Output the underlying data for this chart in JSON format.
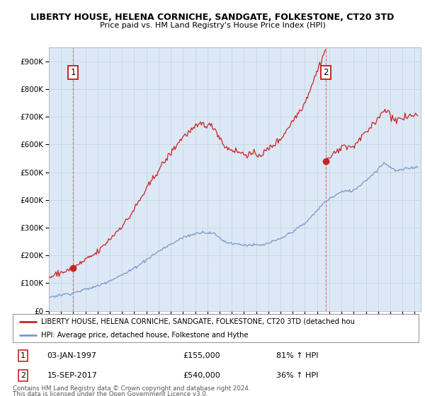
{
  "title1": "LIBERTY HOUSE, HELENA CORNICHE, SANDGATE, FOLKESTONE, CT20 3TD",
  "title2": "Price paid vs. HM Land Registry's House Price Index (HPI)",
  "ylim": [
    0,
    950000
  ],
  "yticks": [
    0,
    100000,
    200000,
    300000,
    400000,
    500000,
    600000,
    700000,
    800000,
    900000
  ],
  "ytick_labels": [
    "£0",
    "£100K",
    "£200K",
    "£300K",
    "£400K",
    "£500K",
    "£600K",
    "£700K",
    "£800K",
    "£900K"
  ],
  "xlim_start": 1995.0,
  "xlim_end": 2025.5,
  "xticks": [
    1995,
    1996,
    1997,
    1998,
    1999,
    2000,
    2001,
    2002,
    2003,
    2004,
    2005,
    2006,
    2007,
    2008,
    2009,
    2010,
    2011,
    2012,
    2013,
    2014,
    2015,
    2016,
    2017,
    2018,
    2019,
    2020,
    2021,
    2022,
    2023,
    2024,
    2025
  ],
  "point1_x": 1997.0,
  "point1_y": 155000,
  "point2_x": 2017.71,
  "point2_y": 540000,
  "point1_label": "1",
  "point2_label": "2",
  "point1_date": "03-JAN-1997",
  "point1_price": "£155,000",
  "point1_hpi": "81% ↑ HPI",
  "point2_date": "15-SEP-2017",
  "point2_price": "£540,000",
  "point2_hpi": "36% ↑ HPI",
  "legend_line1": "LIBERTY HOUSE, HELENA CORNICHE, SANDGATE, FOLKESTONE, CT20 3TD (detached hou",
  "legend_line2": "HPI: Average price, detached house, Folkestone and Hythe",
  "footer1": "Contains HM Land Registry data © Crown copyright and database right 2024.",
  "footer2": "This data is licensed under the Open Government Licence v3.0.",
  "red_color": "#cc2222",
  "blue_color": "#7799cc",
  "bg_color": "#dce8f5",
  "grid_color": "#c0d0e0",
  "plot_bg": "#dce8f5"
}
